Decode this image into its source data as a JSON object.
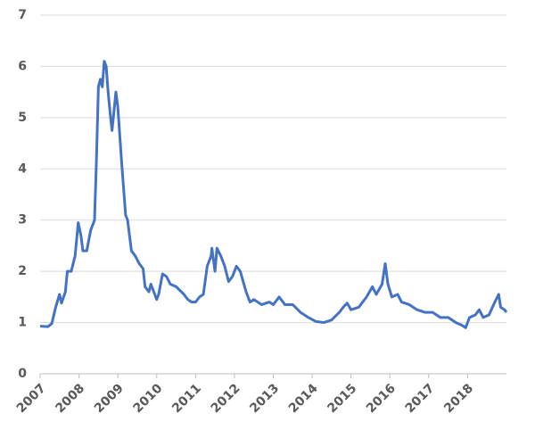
{
  "chart_data": {
    "type": "line",
    "x": [
      2007.0,
      2007.2,
      2007.3,
      2007.4,
      2007.5,
      2007.55,
      2007.65,
      2007.7,
      2007.8,
      2007.9,
      2007.98,
      2008.05,
      2008.1,
      2008.2,
      2008.3,
      2008.4,
      2008.45,
      2008.5,
      2008.55,
      2008.6,
      2008.65,
      2008.7,
      2008.75,
      2008.8,
      2008.85,
      2008.95,
      2009.0,
      2009.1,
      2009.2,
      2009.25,
      2009.35,
      2009.45,
      2009.55,
      2009.65,
      2009.7,
      2009.8,
      2009.85,
      2009.95,
      2010.0,
      2010.05,
      2010.15,
      2010.25,
      2010.35,
      2010.5,
      2010.7,
      2010.8,
      2010.9,
      2011.0,
      2011.1,
      2011.2,
      2011.3,
      2011.4,
      2011.42,
      2011.5,
      2011.55,
      2011.65,
      2011.75,
      2011.85,
      2011.95,
      2012.05,
      2012.15,
      2012.3,
      2012.4,
      2012.5,
      2012.7,
      2012.9,
      2013.0,
      2013.15,
      2013.3,
      2013.5,
      2013.7,
      2013.9,
      2014.1,
      2014.3,
      2014.5,
      2014.7,
      2014.8,
      2014.9,
      2015.0,
      2015.2,
      2015.4,
      2015.55,
      2015.65,
      2015.8,
      2015.88,
      2015.95,
      2016.05,
      2016.2,
      2016.3,
      2016.5,
      2016.7,
      2016.9,
      2017.1,
      2017.3,
      2017.5,
      2017.7,
      2017.85,
      2017.95,
      2018.05,
      2018.2,
      2018.3,
      2018.4,
      2018.55,
      2018.7,
      2018.8,
      2018.85,
      2018.95,
      2019.0
    ],
    "series": [
      {
        "color": "#4472c4",
        "values": [
          0.93,
          0.92,
          0.98,
          1.3,
          1.55,
          1.38,
          1.6,
          2.0,
          2.0,
          2.3,
          2.95,
          2.7,
          2.4,
          2.4,
          2.8,
          3.0,
          4.2,
          5.6,
          5.75,
          5.6,
          6.1,
          6.0,
          5.5,
          5.1,
          4.75,
          5.5,
          5.2,
          4.1,
          3.1,
          3.0,
          2.4,
          2.3,
          2.15,
          2.05,
          1.7,
          1.6,
          1.75,
          1.55,
          1.45,
          1.55,
          1.95,
          1.9,
          1.75,
          1.7,
          1.55,
          1.45,
          1.4,
          1.4,
          1.5,
          1.55,
          2.1,
          2.3,
          2.45,
          2.0,
          2.45,
          2.3,
          2.1,
          1.8,
          1.9,
          2.1,
          2.0,
          1.6,
          1.4,
          1.45,
          1.35,
          1.4,
          1.35,
          1.5,
          1.35,
          1.35,
          1.2,
          1.1,
          1.02,
          1.0,
          1.05,
          1.2,
          1.3,
          1.38,
          1.25,
          1.3,
          1.5,
          1.7,
          1.55,
          1.75,
          2.15,
          1.75,
          1.5,
          1.55,
          1.4,
          1.35,
          1.25,
          1.2,
          1.2,
          1.1,
          1.1,
          1.0,
          0.95,
          0.9,
          1.1,
          1.15,
          1.25,
          1.1,
          1.15,
          1.4,
          1.55,
          1.3,
          1.25,
          1.2
        ]
      }
    ],
    "xlim": [
      2007,
      2019
    ],
    "xticks": [
      2007,
      2008,
      2009,
      2010,
      2011,
      2012,
      2013,
      2014,
      2015,
      2016,
      2017,
      2018
    ],
    "ylim": [
      0,
      7
    ],
    "yticks": [
      0,
      1,
      2,
      3,
      4,
      5,
      6,
      7
    ],
    "grid": true
  }
}
